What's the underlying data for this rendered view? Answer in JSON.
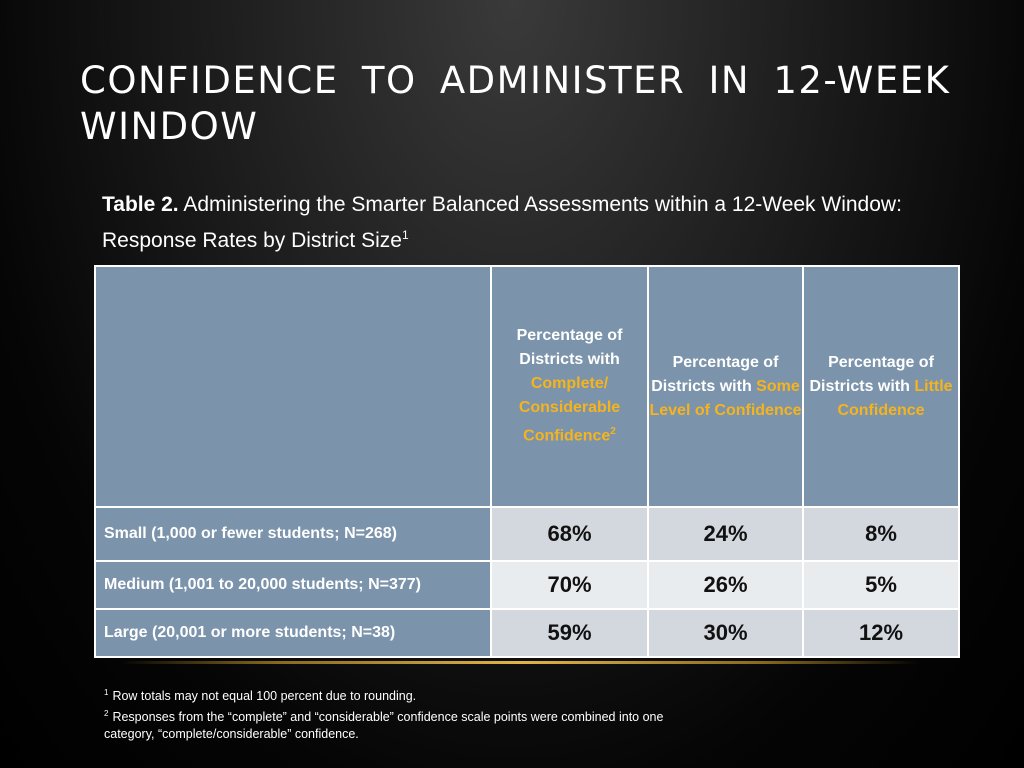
{
  "slide": {
    "title": "CONFIDENCE TO ADMINISTER IN 12-WEEK WINDOW",
    "caption": {
      "label": "Table 2.",
      "text": " Administering the Smarter Balanced Assessments within a 12-Week Window: Response Rates by District Size",
      "sup": "1"
    },
    "table": {
      "headers": [
        {
          "pre": "Percentage of Districts with ",
          "highlight": "Complete/ Considerable Confidence",
          "sup": "2"
        },
        {
          "pre": "Percentage of Districts with ",
          "highlight": "Some Level of Confidence",
          "sup": ""
        },
        {
          "pre": "Percentage of Districts with ",
          "highlight": "Little Confidence",
          "sup": ""
        }
      ],
      "rows": [
        {
          "label": "Small (1,000 or fewer students; N=268)",
          "values": [
            "68%",
            "24%",
            "8%"
          ]
        },
        {
          "label": "Medium (1,001 to 20,000 students; N=377)",
          "values": [
            "70%",
            "26%",
            "5%"
          ]
        },
        {
          "label": "Large (20,001 or more students; N=38)",
          "values": [
            "59%",
            "30%",
            "12%"
          ]
        }
      ]
    },
    "footnotes": [
      {
        "num": "1",
        "text": "Row totals may not equal 100 percent due to rounding."
      },
      {
        "num": "2",
        "text": "Responses from the “complete” and “considerable” confidence scale points were combined into one category, “complete/considerable” confidence."
      }
    ],
    "colors": {
      "accent": "#f5b41e",
      "header_bg": "#7b93ab",
      "cell_bg_dark": "#d3d8de",
      "cell_bg_light": "#e9ecef"
    }
  }
}
